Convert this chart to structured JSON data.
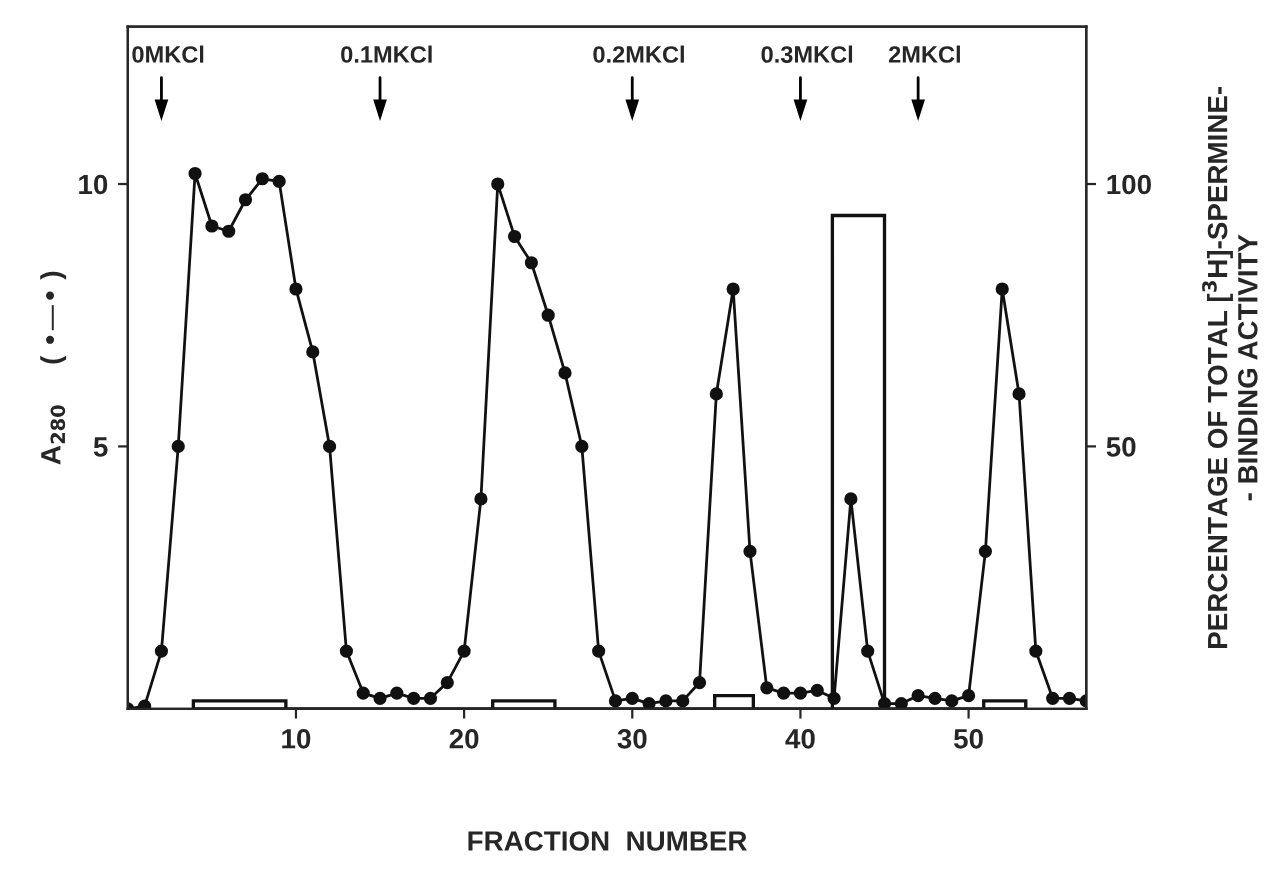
{
  "chart_data": {
    "type": "line",
    "xlabel": "FRACTION  NUMBER",
    "ylabel": "A$_{280}$     ( •—• )",
    "y2label": "PERCENTAGE OF TOTAL [$^{3}$H]-SPERMINE-\n- BINDING ACTIVITY",
    "xlim": [
      0,
      57
    ],
    "xticks": [
      10,
      20,
      30,
      40,
      50
    ],
    "ylim": [
      0,
      13
    ],
    "yticks": [
      5,
      10
    ],
    "y2lim": [
      0,
      130
    ],
    "y2ticks": [
      50,
      100
    ],
    "grid": false,
    "marker": "circle",
    "line_style": "solid",
    "ref_lines": [
      {
        "axis": "x",
        "value": 2,
        "label": "0MKCl"
      },
      {
        "axis": "x",
        "value": 15,
        "label": "0.1MKCl"
      },
      {
        "axis": "x",
        "value": 30,
        "label": "0.2MKCl"
      },
      {
        "axis": "x",
        "value": 40,
        "label": "0.3MKCl"
      },
      {
        "axis": "x",
        "value": 47,
        "label": "2MKCl"
      }
    ],
    "series": [
      {
        "color": "#111111",
        "x": [
          0,
          1,
          2,
          3,
          4,
          5,
          6,
          7,
          8,
          9,
          10,
          11,
          12,
          13,
          14,
          15,
          16,
          17,
          18,
          19,
          20,
          21,
          22,
          23,
          24,
          25,
          26,
          27,
          28,
          29,
          30,
          31,
          32,
          33,
          34,
          35,
          36,
          37,
          38,
          39,
          40,
          41,
          42,
          43,
          44,
          45,
          46,
          47,
          48,
          49,
          50,
          51,
          52,
          53,
          54,
          55,
          56,
          57
        ],
        "values": [
          0,
          0.05,
          1.1,
          5,
          10.2,
          9.2,
          9.1,
          9.7,
          10.1,
          10.05,
          8,
          6.8,
          5,
          1.1,
          0.3,
          0.2,
          0.3,
          0.2,
          0.2,
          0.5,
          1.1,
          4,
          10,
          9,
          8.5,
          7.5,
          6.4,
          5,
          1.1,
          0.15,
          0.2,
          0.1,
          0.15,
          0.15,
          0.5,
          6,
          8,
          3,
          0.4,
          0.3,
          0.3,
          0.35,
          0.2,
          4,
          1.1,
          0.1,
          0.1,
          0.25,
          0.2,
          0.15,
          0.25,
          3,
          8,
          6,
          1.1,
          0.2,
          0.2,
          0.15
        ]
      },
      {
        "type": "histogram",
        "axis": "y2",
        "color": "#111111",
        "bins": [
          3.9,
          9.4,
          21.7,
          25.4,
          34.9,
          37.2,
          41.9,
          45,
          50.9,
          53.4
        ],
        "values": [
          1.5,
          0,
          1.5,
          0,
          2.5,
          0,
          94,
          0,
          1.5
        ]
      }
    ]
  }
}
